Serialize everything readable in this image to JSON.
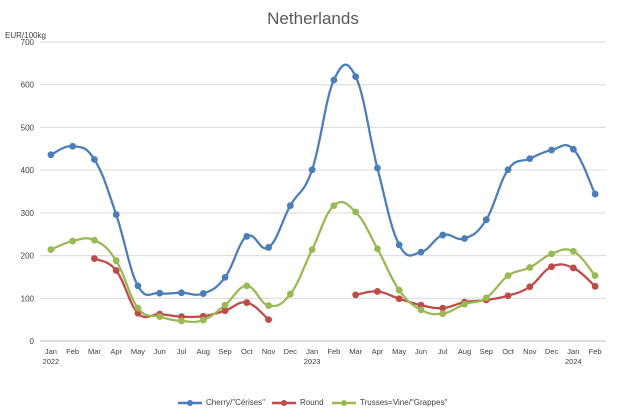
{
  "chart_data": {
    "type": "line",
    "title": "Netherlands",
    "ylabel": "EUR/100kg",
    "xlabel": "",
    "ylim": [
      0,
      700
    ],
    "yticks": [
      0,
      100,
      200,
      300,
      400,
      500,
      600,
      700
    ],
    "grid": true,
    "legend_position": "bottom",
    "x": [
      "Jan 2022",
      "Feb 2022",
      "Mar 2022",
      "Apr 2022",
      "May 2022",
      "Jun 2022",
      "Jul 2022",
      "Aug 2022",
      "Sep 2022",
      "Oct 2022",
      "Nov 2022",
      "Dec 2022",
      "Jan 2023",
      "Feb 2023",
      "Mar 2023",
      "Apr 2023",
      "May 2023",
      "Jun 2023",
      "Jul 2023",
      "Aug 2023",
      "Sep 2023",
      "Oct 2023",
      "Nov 2023",
      "Dec 2023",
      "Jan 2024",
      "Feb 2024"
    ],
    "month_labels": [
      "Jan",
      "Feb",
      "Mar",
      "Apr",
      "May",
      "Jun",
      "Jul",
      "Aug",
      "Sep",
      "Oct",
      "Nov",
      "Dec",
      "Jan",
      "Feb",
      "Mar",
      "Apr",
      "May",
      "Jun",
      "Jul",
      "Aug",
      "Sep",
      "Oct",
      "Nov",
      "Dec",
      "Jan",
      "Feb"
    ],
    "year_labels": [
      {
        "index": 0,
        "label": "2022"
      },
      {
        "index": 12,
        "label": "2023"
      },
      {
        "index": 24,
        "label": "2024"
      }
    ],
    "series": [
      {
        "name": "Cherry/\"Cérises\"",
        "color": "#4a7ebb",
        "values": [
          436,
          456,
          425,
          296,
          129,
          112,
          113,
          111,
          149,
          245,
          219,
          317,
          401,
          611,
          619,
          405,
          225,
          208,
          248,
          240,
          284,
          401,
          427,
          447,
          449,
          344
        ]
      },
      {
        "name": "Round",
        "color": "#be4b48",
        "values": [
          null,
          null,
          193,
          165,
          65,
          63,
          57,
          58,
          71,
          90,
          50,
          null,
          null,
          null,
          108,
          116,
          99,
          84,
          77,
          91,
          96,
          106,
          127,
          174,
          171,
          128
        ]
      },
      {
        "name": "Trusses=Vine/\"Grappes\"",
        "color": "#98b954",
        "values": [
          214,
          234,
          236,
          188,
          77,
          57,
          47,
          49,
          84,
          129,
          83,
          110,
          214,
          317,
          302,
          216,
          119,
          73,
          64,
          86,
          101,
          153,
          172,
          204,
          210,
          153
        ]
      }
    ]
  }
}
